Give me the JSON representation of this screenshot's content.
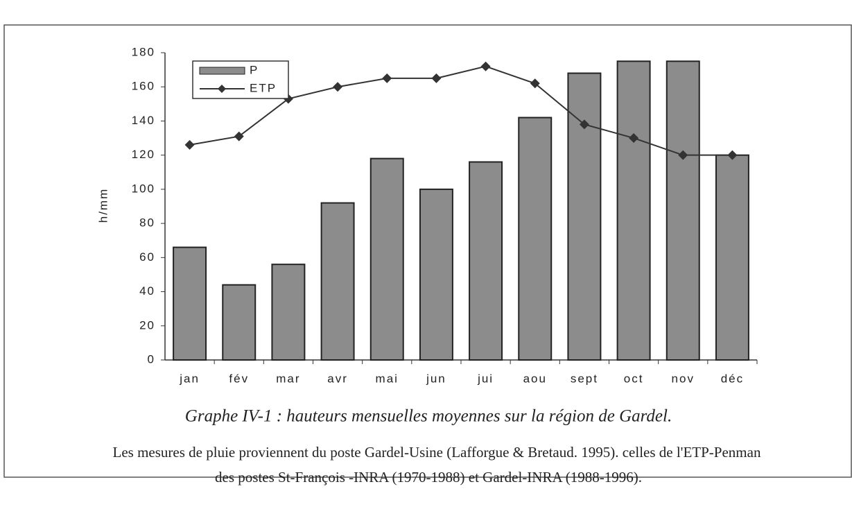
{
  "chart_data": {
    "type": "combo",
    "ylabel": "h/mm",
    "categories": [
      "jan",
      "fév",
      "mar",
      "avr",
      "mai",
      "jun",
      "jui",
      "aou",
      "sept",
      "oct",
      "nov",
      "déc"
    ],
    "series": [
      {
        "name": "P",
        "type": "bar",
        "color": "#8c8c8c",
        "values": [
          66,
          44,
          56,
          92,
          118,
          100,
          116,
          142,
          168,
          175,
          175,
          120
        ]
      },
      {
        "name": "ETP",
        "type": "line",
        "color": "#333333",
        "values": [
          126,
          131,
          153,
          160,
          165,
          165,
          172,
          162,
          138,
          130,
          120,
          120
        ]
      }
    ],
    "ylim": [
      0,
      180
    ],
    "yticks": [
      0,
      20,
      40,
      60,
      80,
      100,
      120,
      140,
      160,
      180
    ],
    "grid": false,
    "legend": "top-left",
    "caption": "Graphe IV-1 : hauteurs mensuelles moyennes sur la région de Gardel.",
    "note": [
      "Les mesures de pluie proviennent du poste Gardel-Usine (Lafforgue & Bretaud. 1995). celles de l'ETP-Penman",
      "des postes St-François -INRA (1970-1988) et Gardel-INRA (1988-1996)."
    ]
  }
}
